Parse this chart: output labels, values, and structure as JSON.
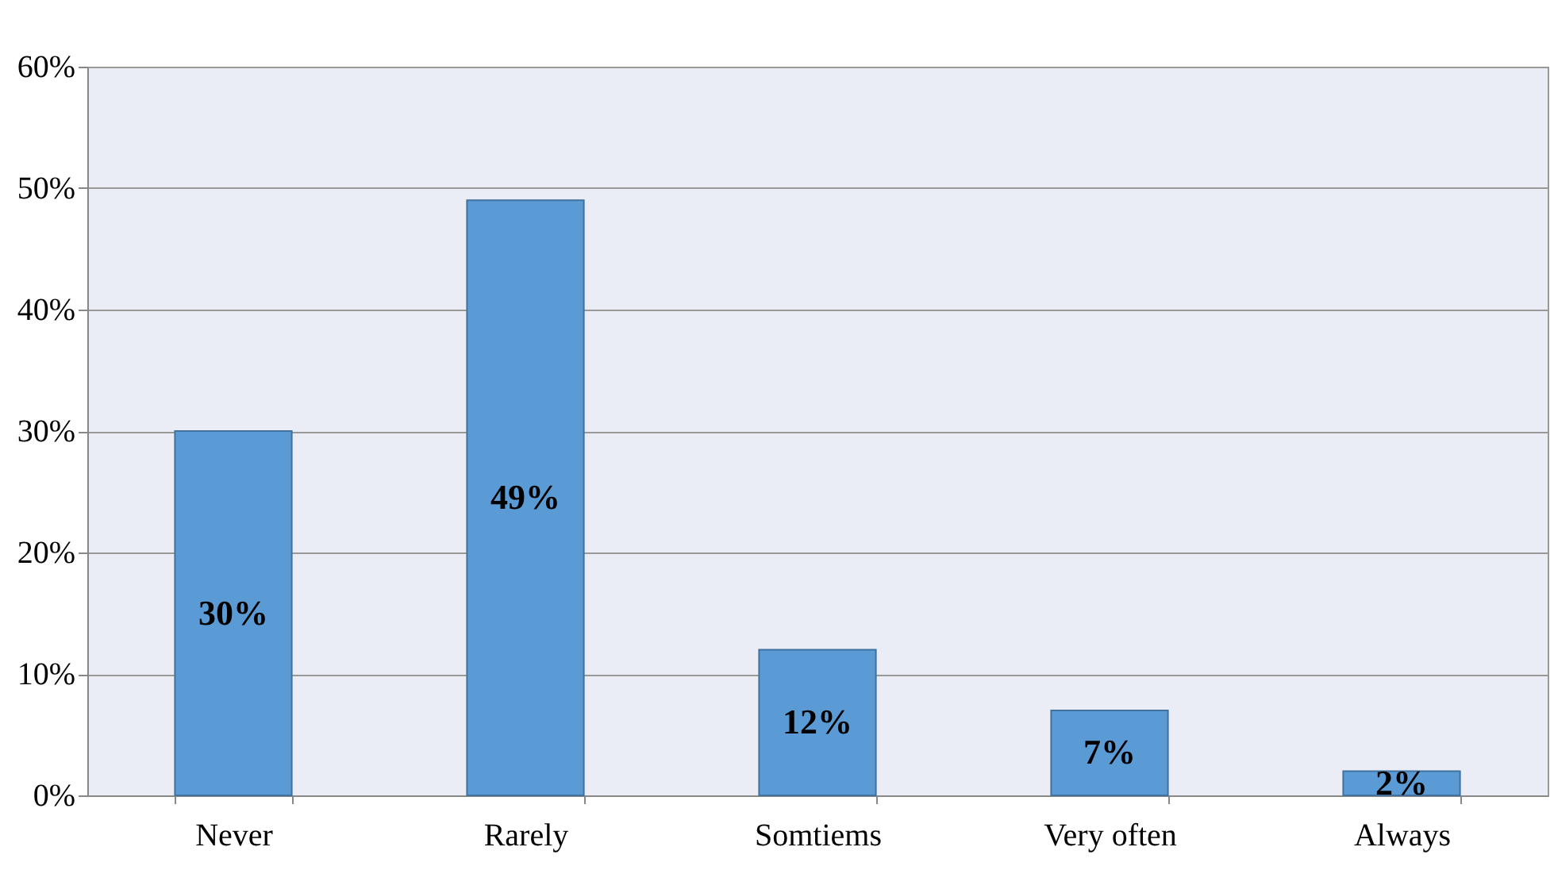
{
  "chart_data": {
    "type": "bar",
    "categories": [
      "Never",
      "Rarely",
      "Somtiems",
      "Very often",
      "Always"
    ],
    "values": [
      30,
      49,
      12,
      7,
      2
    ],
    "value_labels": [
      "30%",
      "49%",
      "12%",
      "7%",
      "2%"
    ],
    "color": "#5b9bd5",
    "ylim": [
      0,
      60
    ],
    "yticks": [
      {
        "value": 0,
        "label": "0%"
      },
      {
        "value": 10,
        "label": "10%"
      },
      {
        "value": 20,
        "label": "20%"
      },
      {
        "value": 30,
        "label": "30%"
      },
      {
        "value": 40,
        "label": "40%"
      },
      {
        "value": 50,
        "label": "50%"
      },
      {
        "value": 60,
        "label": "60%"
      }
    ],
    "grid": "y"
  }
}
